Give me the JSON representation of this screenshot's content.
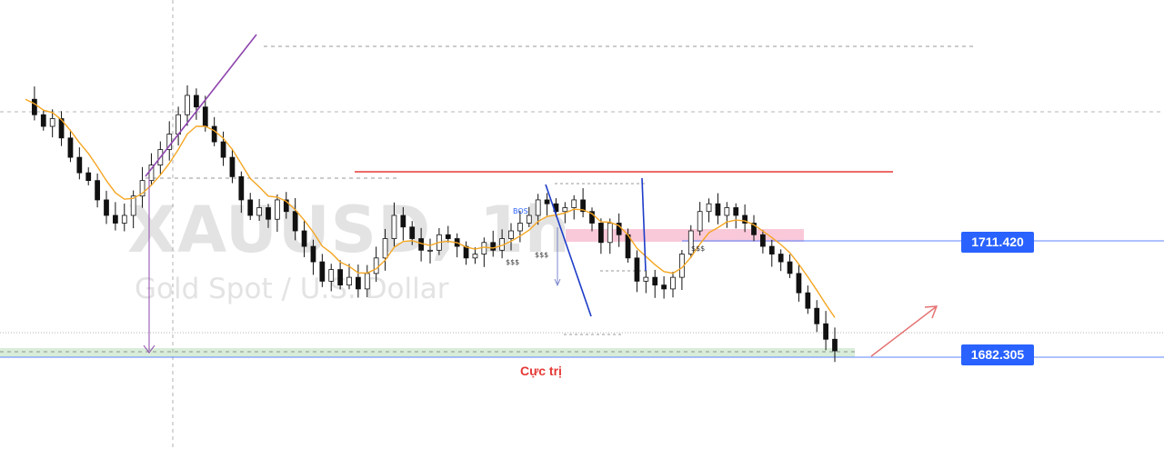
{
  "chart": {
    "symbol": "XAUUSD, 1h",
    "description": "Gold Spot / U.S. Dollar"
  },
  "price_labels": {
    "upper": "1711.420",
    "lower": "1682.305"
  },
  "annotations": {
    "zone_label": "Cực trị",
    "bos": "BOS",
    "liquidity_marks": [
      "$$$",
      "$$$",
      "$$$"
    ]
  },
  "colors": {
    "candle": "#111111",
    "ema": "#f5a623",
    "price_badge": "#2962ff",
    "resistance_line": "#e53935",
    "support_zone": "#c8e6c9",
    "supply_zone": "#f8bbd0",
    "impulse_purple": "#8e44ad",
    "impulse_blue": "#1e3cc8",
    "projection_arrow": "#e57373"
  },
  "chart_data": {
    "type": "line",
    "series": [
      {
        "values": [
          1748,
          1744,
          1741,
          1743,
          1738,
          1733,
          1729,
          1727,
          1722,
          1718,
          1716,
          1718,
          1723,
          1727,
          1731,
          1735,
          1739,
          1744,
          1749,
          1746,
          1741,
          1737,
          1733,
          1728,
          1722,
          1718,
          1720,
          1717,
          1722,
          1719,
          1714,
          1710,
          1706,
          1701,
          1704,
          1700,
          1702,
          1699,
          1703,
          1707,
          1712,
          1718,
          1715,
          1712,
          1709,
          1709,
          1713,
          1712,
          1710,
          1707,
          1708,
          1711,
          1709,
          1712,
          1714,
          1716,
          1718,
          1722,
          1721,
          1719,
          1720,
          1722,
          1719,
          1716,
          1711,
          1716,
          1713,
          1707,
          1701,
          1702,
          1700,
          1699,
          1702,
          1708,
          1714,
          1719,
          1721,
          1718,
          1720,
          1718,
          1716,
          1713,
          1710,
          1708,
          1706,
          1703,
          1698,
          1694,
          1690,
          1686,
          1683
        ]
      }
    ]
  }
}
